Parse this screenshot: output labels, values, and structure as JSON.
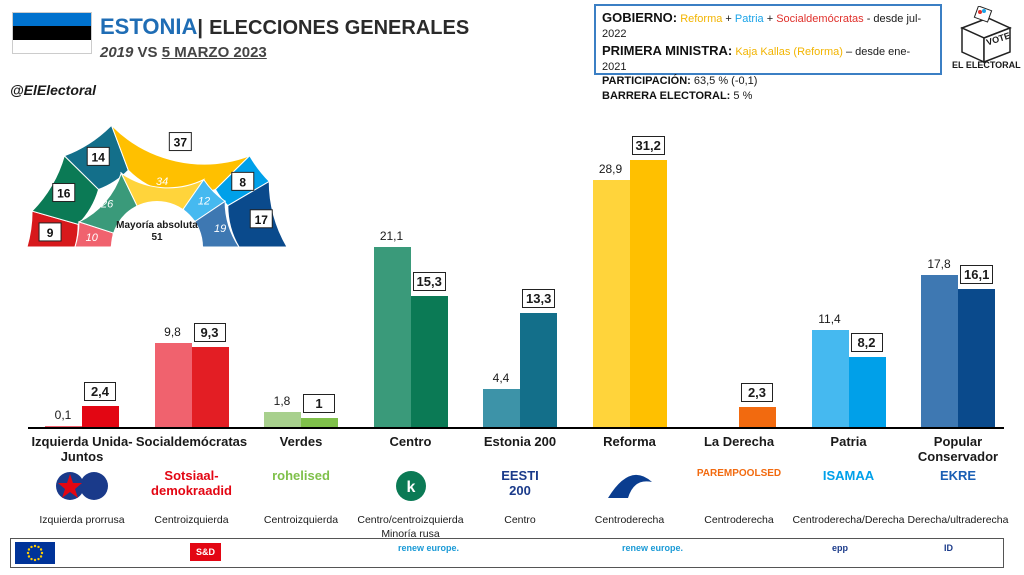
{
  "header": {
    "country": "ESTONIA",
    "separator": "|",
    "title": "ELECCIONES GENERALES",
    "year_prev": "2019",
    "vs": "VS",
    "date": "5 MARZO 2023"
  },
  "flag_colors": [
    "#0072ce",
    "#000000",
    "#ffffff"
  ],
  "info": {
    "gov_label": "GOBIERNO:",
    "gov_p1": "Reforma",
    "plus1": " + ",
    "gov_p2": "Patria",
    "plus2": " + ",
    "gov_p3": "Socialdemócratas",
    "gov_since": " - desde jul-2022",
    "pm_label": "PRIMERA MINISTRA:",
    "pm_name": "Kaja Kallas (Reforma)",
    "pm_since": " – desde ene-2021",
    "part_label": "PARTICIPACIÓN:",
    "part_value": "63,5 % (-0,1)",
    "barrier_label": "BARRERA ELECTORAL:",
    "barrier_value": "5 %"
  },
  "logo": {
    "vote": "VOTE",
    "brand": "EL ELECTORAL"
  },
  "handle": "@ElElectoral",
  "hemicycle": {
    "majority_label": "Mayoría absoluta",
    "majority_value": "51",
    "seats_2023": [
      {
        "party": "Izquierda Unida-Juntos",
        "seats": 0,
        "color": "#d7191c"
      },
      {
        "party": "Socialdemócratas",
        "seats": 9,
        "color": "#d7191c"
      },
      {
        "party": "Centro",
        "seats": 16,
        "color": "#0b7a55"
      },
      {
        "party": "Estonia 200",
        "seats": 14,
        "color": "#136f8a"
      },
      {
        "party": "Reforma",
        "seats": 37,
        "color": "#ffc000"
      },
      {
        "party": "Patria",
        "seats": 8,
        "color": "#00a0e9"
      },
      {
        "party": "Popular Conservador",
        "seats": 17,
        "color": "#0a4a8c"
      }
    ],
    "seats_2019": [
      {
        "party": "Socialdemócratas",
        "seats": 10,
        "color": "#f0626e"
      },
      {
        "party": "Centro",
        "seats": 26,
        "color": "#3a9a7a"
      },
      {
        "party": "Reforma",
        "seats": 34,
        "color": "#ffd43b"
      },
      {
        "party": "Patria",
        "seats": 12,
        "color": "#45b9f0"
      },
      {
        "party": "Popular Conservador",
        "seats": 19,
        "color": "#3e78b2"
      }
    ]
  },
  "chart_data": {
    "type": "bar",
    "title": "ELECCIONES GENERALES",
    "categories": [
      "Izquierda Unida-Juntos",
      "Socialdemócratas",
      "Verdes",
      "Centro",
      "Estonia 200",
      "Reforma",
      "La Derecha",
      "Patria",
      "Popular Conservador"
    ],
    "series": [
      {
        "name": "2019",
        "values": [
          0.1,
          9.8,
          1.8,
          21.1,
          4.4,
          28.9,
          null,
          11.4,
          17.8
        ],
        "labels": [
          "0,1",
          "9,8",
          "1,8",
          "21,1",
          "4,4",
          "28,9",
          "",
          "11,4",
          "17,8"
        ]
      },
      {
        "name": "5 MARZO 2023",
        "values": [
          2.4,
          9.3,
          1,
          15.3,
          13.3,
          31.2,
          2.3,
          8.2,
          16.1
        ],
        "labels": [
          "2,4",
          "9,3",
          "1",
          "15,3",
          "13,3",
          "31,2",
          "2,3",
          "8,2",
          "16,1"
        ]
      }
    ],
    "colors_2019": [
      "#f0626e",
      "#f0626e",
      "#a8d08d",
      "#3a9a7a",
      "#3d93a8",
      "#ffd43b",
      "#ff7f3a",
      "#45b9f0",
      "#3e78b2"
    ],
    "colors_2023": [
      "#e30613",
      "#e31e24",
      "#7fc04a",
      "#0b7a55",
      "#136f8a",
      "#ffc000",
      "#f26a0f",
      "#00a0e9",
      "#0a4a8c"
    ],
    "ylim": [
      0,
      35
    ],
    "grid": false
  },
  "category_labels": [
    "Izquierda Unida-\nJuntos",
    "Socialdemócratas",
    "Verdes",
    "Centro",
    "Estonia 200",
    "Reforma",
    "La Derecha",
    "Patria",
    "Popular\nConservador"
  ],
  "ideology": [
    "Izquierda prorrusa",
    "Centroizquierda",
    "Centroizquierda",
    "Centro/centroizquierda\nMinoría rusa",
    "Centro",
    "Centroderecha",
    "Centroderecha",
    "Centroderecha/Derecha",
    "Derecha/ultraderecha"
  ],
  "party_logos": [
    "",
    "Sotsiaal-\ndemokraadid",
    "rohelised",
    "",
    "EESTI\n200",
    "",
    "PAREMPOOLSED",
    "ISAMAA",
    "EKRE"
  ],
  "eu_groups": [
    "S&D",
    "renew europe.",
    "renew europe.",
    "epp",
    "ID"
  ]
}
